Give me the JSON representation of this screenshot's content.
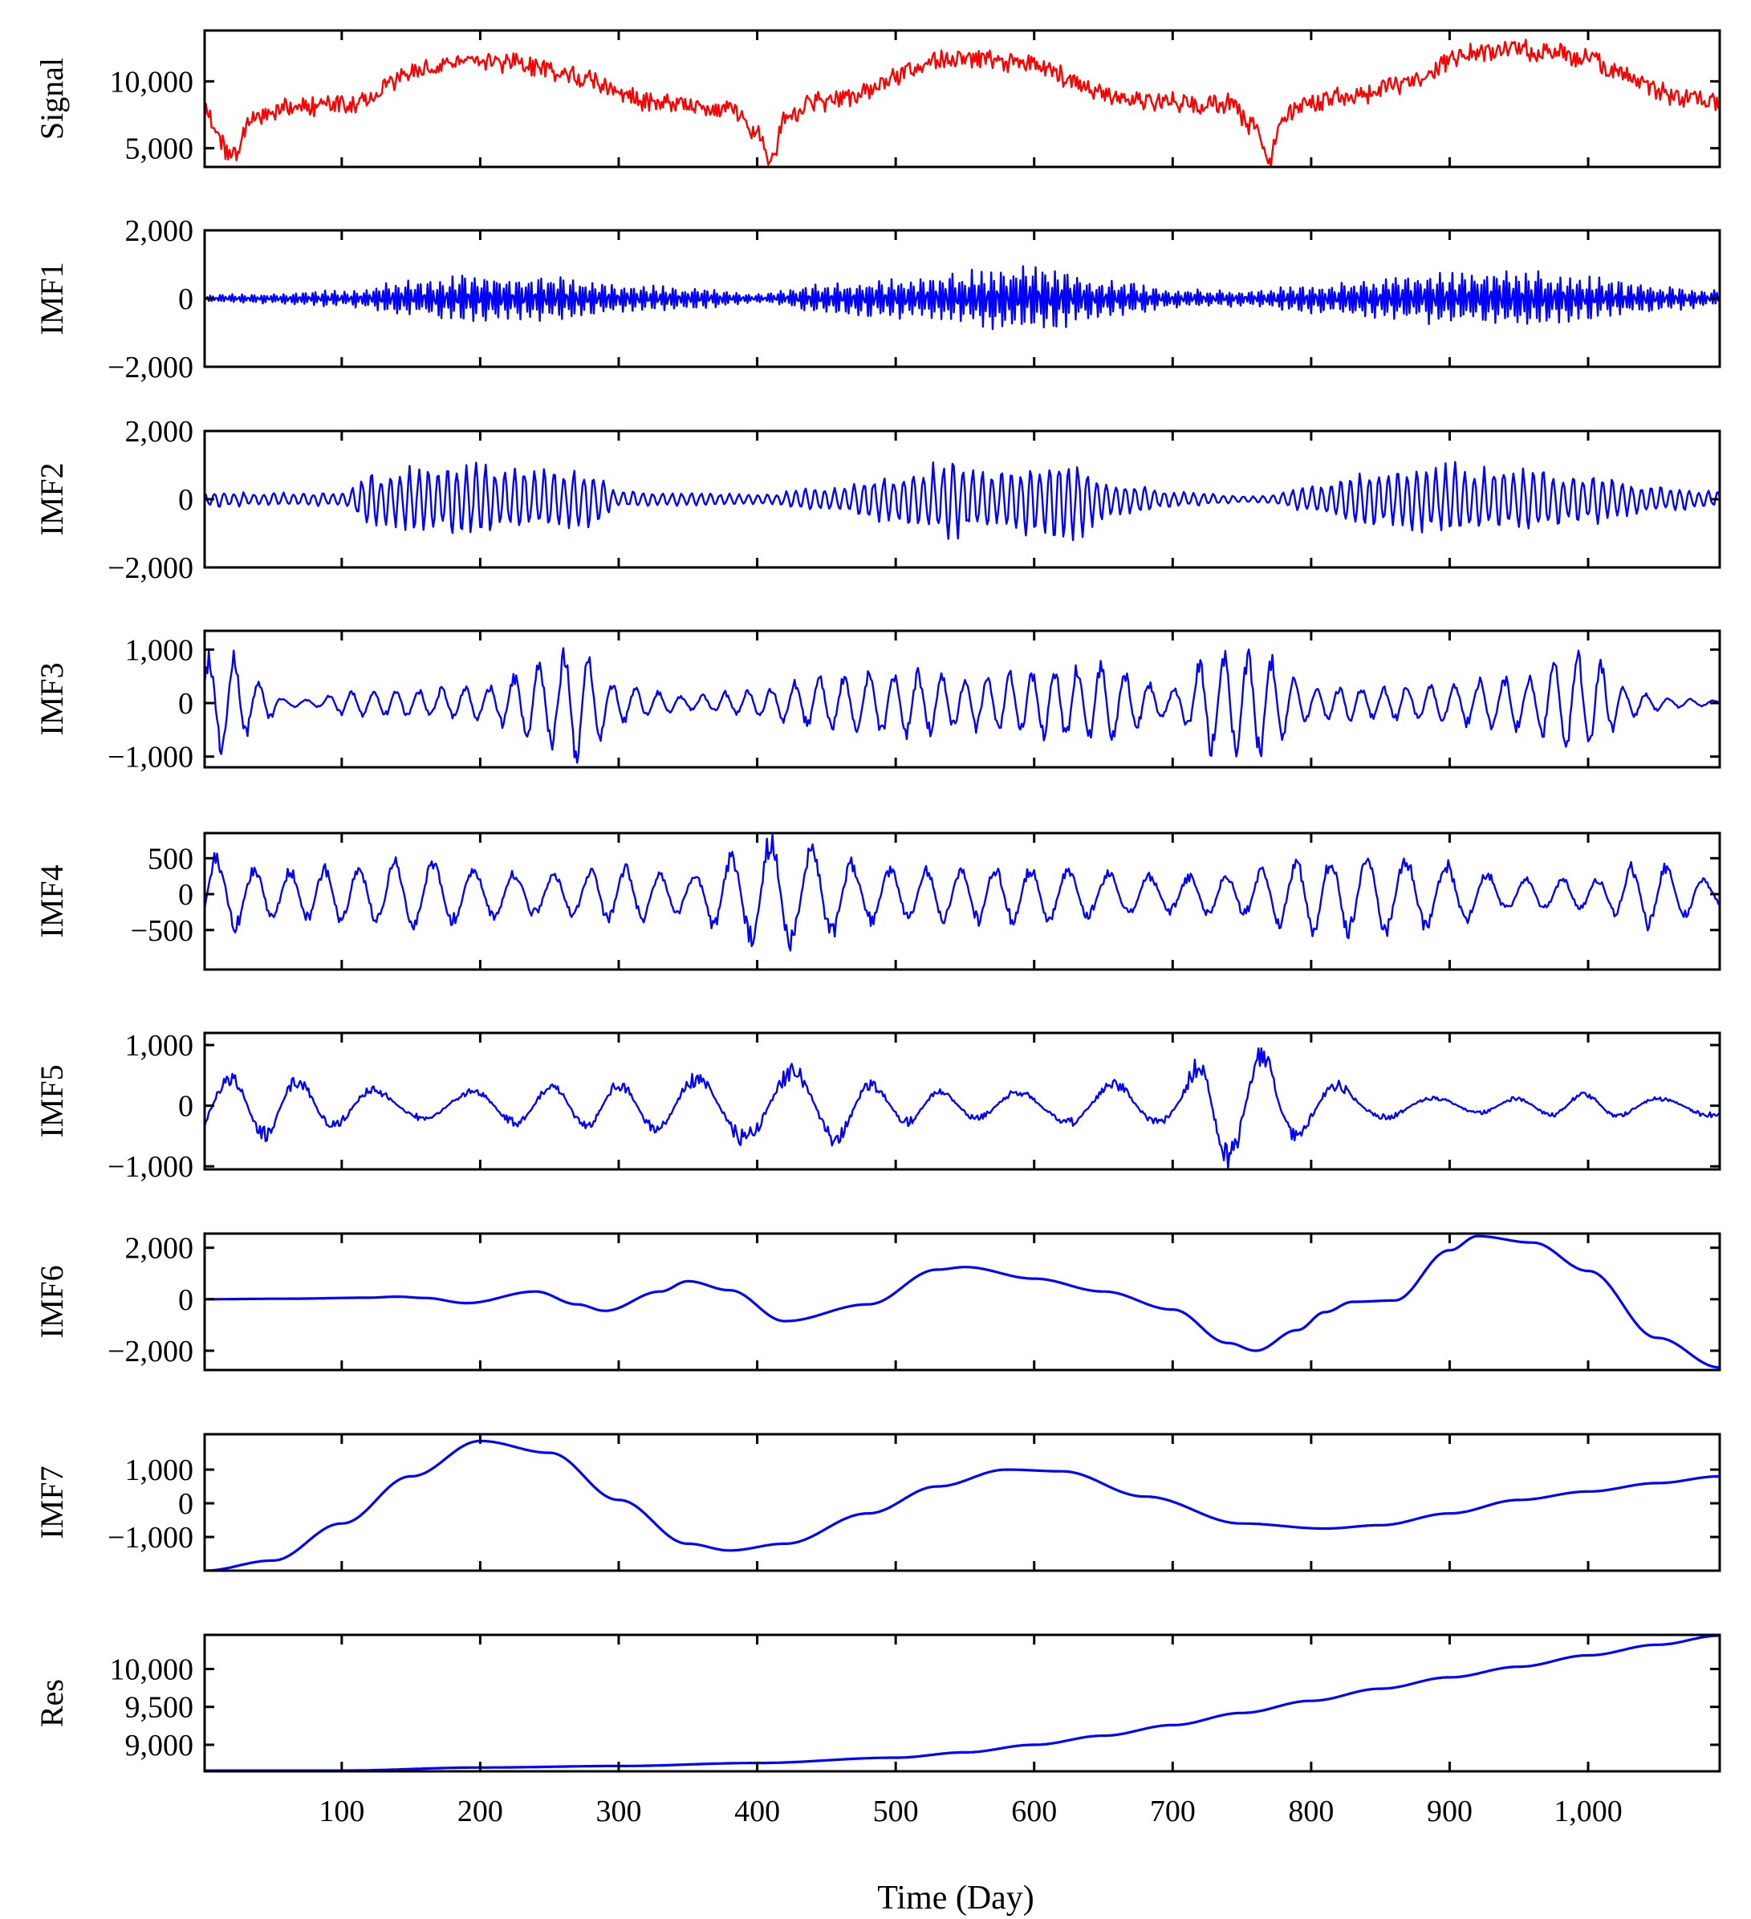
{
  "figure": {
    "xlabel": "Time (Day)",
    "x_tick_labels": [
      "100",
      "200",
      "300",
      "400",
      "500",
      "600",
      "700",
      "800",
      "900",
      "1,000"
    ]
  },
  "chart_data": {
    "type": "line",
    "xlabel": "Time (Day)",
    "xlim": [
      1,
      1095
    ],
    "x_ticks": [
      100,
      200,
      300,
      400,
      500,
      600,
      700,
      800,
      900,
      1000
    ],
    "grid": false,
    "panels": [
      {
        "name": "Signal",
        "ylabel": "Signal",
        "color": "#ff0000",
        "ylim": [
          3600,
          13800
        ],
        "y_ticks": [
          5000,
          10000
        ],
        "y_tick_labels": [
          "5,000",
          "10,000"
        ],
        "noise_amplitude": 850,
        "x": [
          1,
          20,
          40,
          60,
          80,
          100,
          120,
          140,
          160,
          180,
          200,
          220,
          240,
          260,
          280,
          300,
          320,
          340,
          360,
          380,
          400,
          410,
          420,
          440,
          460,
          480,
          500,
          520,
          540,
          560,
          580,
          600,
          620,
          640,
          660,
          680,
          700,
          720,
          740,
          760,
          770,
          780,
          800,
          820,
          840,
          860,
          880,
          900,
          920,
          940,
          960,
          980,
          1000,
          1020,
          1040,
          1060,
          1080,
          1095
        ],
        "values": [
          7800,
          4500,
          7600,
          8000,
          8200,
          8300,
          8600,
          10200,
          10800,
          11300,
          11600,
          11400,
          11200,
          10700,
          10200,
          9100,
          8400,
          8300,
          8100,
          7900,
          6200,
          4000,
          7000,
          8400,
          8700,
          9100,
          10400,
          11200,
          11700,
          11600,
          11400,
          11300,
          10400,
          9200,
          8800,
          8700,
          8500,
          8400,
          8300,
          6500,
          4200,
          7400,
          8400,
          8800,
          9000,
          9600,
          10300,
          11600,
          12200,
          12400,
          12300,
          12100,
          11600,
          10700,
          9800,
          9000,
          8700,
          8600
        ]
      },
      {
        "name": "IMF1",
        "ylabel": "IMF1",
        "color": "#0000ff",
        "ylim": [
          -2000,
          2000
        ],
        "y_ticks": [
          -2000,
          0,
          2000
        ],
        "y_tick_labels": [
          "−2,000",
          "0",
          "2,000"
        ],
        "period": 2.3,
        "x": [
          1,
          50,
          100,
          150,
          200,
          250,
          300,
          350,
          400,
          450,
          500,
          550,
          600,
          650,
          700,
          750,
          800,
          850,
          900,
          950,
          1000,
          1050,
          1095
        ],
        "values": [
          120,
          150,
          250,
          550,
          750,
          700,
          450,
          350,
          150,
          450,
          650,
          850,
          1050,
          600,
          300,
          250,
          450,
          650,
          800,
          900,
          650,
          400,
          250
        ]
      },
      {
        "name": "IMF2",
        "ylabel": "IMF2",
        "color": "#0000ff",
        "ylim": [
          -2000,
          2000
        ],
        "y_ticks": [
          -2000,
          0,
          2000
        ],
        "y_tick_labels": [
          "−2,000",
          "0",
          "2,000"
        ],
        "period": 7,
        "x": [
          1,
          50,
          100,
          120,
          150,
          200,
          250,
          280,
          300,
          350,
          400,
          450,
          500,
          540,
          570,
          600,
          620,
          660,
          700,
          760,
          800,
          850,
          900,
          950,
          1000,
          1050,
          1095
        ],
        "values": [
          250,
          200,
          200,
          800,
          1000,
          1100,
          950,
          900,
          250,
          200,
          150,
          400,
          800,
          1200,
          900,
          1100,
          1400,
          500,
          250,
          100,
          400,
          900,
          1100,
          1000,
          750,
          400,
          250
        ]
      },
      {
        "name": "IMF3",
        "ylabel": "IMF3",
        "color": "#0000ff",
        "ylim": [
          -1200,
          1350
        ],
        "y_ticks": [
          -1000,
          0,
          1000
        ],
        "y_tick_labels": [
          "−1,000",
          "0",
          "1,000"
        ],
        "period": 17,
        "x": [
          1,
          20,
          40,
          60,
          80,
          100,
          150,
          200,
          250,
          270,
          300,
          350,
          400,
          450,
          500,
          550,
          600,
          650,
          700,
          730,
          760,
          800,
          850,
          900,
          950,
          990,
          1000,
          1030,
          1060,
          1095
        ],
        "values": [
          1100,
          1100,
          500,
          80,
          80,
          250,
          300,
          350,
          900,
          1200,
          400,
          150,
          300,
          550,
          700,
          550,
          700,
          850,
          300,
          1100,
          1100,
          350,
          350,
          450,
          600,
          1050,
          1050,
          300,
          100,
          60
        ]
      },
      {
        "name": "IMF4",
        "ylabel": "IMF4",
        "color": "#0000ff",
        "ylim": [
          -1050,
          850
        ],
        "y_ticks": [
          -500,
          0,
          500
        ],
        "y_tick_labels": [
          "−500",
          "0",
          "500"
        ],
        "period": 27,
        "x": [
          1,
          50,
          100,
          150,
          200,
          250,
          300,
          350,
          380,
          410,
          440,
          480,
          550,
          600,
          650,
          700,
          750,
          800,
          850,
          900,
          950,
          1000,
          1050,
          1095
        ],
        "values": [
          650,
          400,
          450,
          550,
          400,
          350,
          450,
          300,
          650,
          950,
          800,
          450,
          450,
          450,
          350,
          300,
          350,
          600,
          650,
          500,
          250,
          250,
          550,
          200
        ]
      },
      {
        "name": "IMF5",
        "ylabel": "IMF5",
        "color": "#0000ff",
        "ylim": [
          -1050,
          1200
        ],
        "y_ticks": [
          -1000,
          0,
          1000
        ],
        "y_tick_labels": [
          "−1,000",
          "0",
          "1,000"
        ],
        "period": 58,
        "x": [
          1,
          50,
          100,
          150,
          200,
          250,
          300,
          350,
          400,
          450,
          500,
          550,
          600,
          650,
          700,
          730,
          760,
          800,
          850,
          900,
          950,
          1000,
          1050,
          1095
        ],
        "values": [
          600,
          600,
          400,
          250,
          300,
          400,
          450,
          550,
          700,
          700,
          350,
          250,
          300,
          450,
          350,
          1150,
          1050,
          500,
          250,
          150,
          150,
          250,
          150,
          200
        ]
      },
      {
        "name": "IMF6",
        "ylabel": "IMF6",
        "color": "#0000ff",
        "ylim": [
          -2750,
          2550
        ],
        "y_ticks": [
          -2000,
          0,
          2000
        ],
        "y_tick_labels": [
          "−2,000",
          "0",
          "2,000"
        ],
        "x": [
          1,
          60,
          120,
          140,
          160,
          190,
          240,
          270,
          290,
          330,
          350,
          380,
          420,
          480,
          530,
          550,
          600,
          650,
          700,
          740,
          760,
          790,
          810,
          830,
          860,
          900,
          920,
          960,
          1000,
          1050,
          1095
        ],
        "values": [
          0,
          20,
          60,
          100,
          50,
          -150,
          300,
          -200,
          -450,
          300,
          700,
          350,
          -850,
          -200,
          1150,
          1250,
          800,
          300,
          -400,
          -1700,
          -2000,
          -1200,
          -500,
          -100,
          -50,
          1900,
          2450,
          2200,
          1100,
          -1500,
          -2650
        ]
      },
      {
        "name": "IMF7",
        "ylabel": "IMF7",
        "color": "#0000ff",
        "ylim": [
          -2000,
          2050
        ],
        "y_ticks": [
          -1000,
          0,
          1000
        ],
        "y_tick_labels": [
          "−1,000",
          "0",
          "1,000"
        ],
        "x": [
          1,
          50,
          100,
          150,
          200,
          250,
          300,
          350,
          380,
          420,
          480,
          530,
          580,
          620,
          680,
          750,
          810,
          850,
          900,
          950,
          1000,
          1050,
          1095
        ],
        "values": [
          -2000,
          -1700,
          -600,
          800,
          1850,
          1500,
          100,
          -1200,
          -1400,
          -1200,
          -300,
          500,
          1000,
          950,
          200,
          -600,
          -750,
          -650,
          -300,
          100,
          350,
          600,
          800
        ]
      },
      {
        "name": "Res",
        "ylabel": "Res",
        "color": "#0000ff",
        "ylim": [
          8650,
          10450
        ],
        "y_ticks": [
          9000,
          9500,
          10000
        ],
        "y_tick_labels": [
          "9,000",
          "9,500",
          "10,000"
        ],
        "x": [
          1,
          100,
          200,
          300,
          400,
          500,
          550,
          600,
          650,
          700,
          750,
          800,
          850,
          900,
          950,
          1000,
          1050,
          1095
        ],
        "values": [
          8660,
          8660,
          8700,
          8720,
          8760,
          8830,
          8900,
          9000,
          9120,
          9260,
          9420,
          9580,
          9740,
          9890,
          10030,
          10180,
          10320,
          10440
        ]
      }
    ]
  }
}
